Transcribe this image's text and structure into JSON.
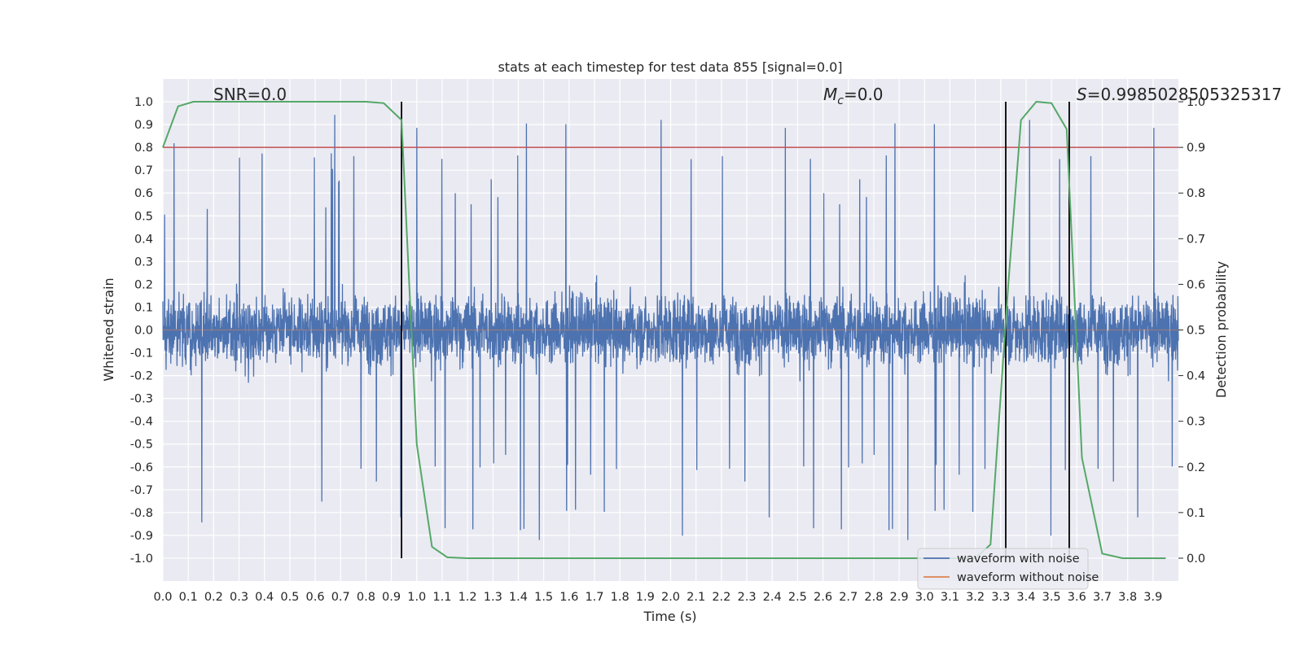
{
  "chart_data": {
    "type": "line",
    "title": "stats at each timestep for test data 855 [signal=0.0]",
    "xlabel": "Time (s)",
    "ylabel": "Whitened strain",
    "y2label": "Detection probability",
    "xlim": [
      0.0,
      4.0
    ],
    "ylim": [
      -1.1,
      1.1
    ],
    "y2lim": [
      -0.05,
      1.0
    ],
    "grid": true,
    "x_ticks": [
      "0.0",
      "0.1",
      "0.2",
      "0.3",
      "0.4",
      "0.5",
      "0.6",
      "0.7",
      "0.8",
      "0.9",
      "1.0",
      "1.1",
      "1.2",
      "1.3",
      "1.4",
      "1.5",
      "1.6",
      "1.7",
      "1.8",
      "1.9",
      "2.0",
      "2.1",
      "2.2",
      "2.3",
      "2.4",
      "2.5",
      "2.6",
      "2.7",
      "2.8",
      "2.9",
      "3.0",
      "3.1",
      "3.2",
      "3.3",
      "3.4",
      "3.5",
      "3.6",
      "3.7",
      "3.8",
      "3.9"
    ],
    "y_ticks": [
      "1.0",
      "0.9",
      "0.8",
      "0.7",
      "0.6",
      "0.5",
      "0.4",
      "0.3",
      "0.2",
      "0.1",
      "0.0",
      "-0.1",
      "-0.2",
      "-0.3",
      "-0.4",
      "-0.5",
      "-0.6",
      "-0.7",
      "-0.8",
      "-0.9",
      "-1.0"
    ],
    "y2_ticks": [
      "1.0",
      "0.9",
      "0.8",
      "0.7",
      "0.6",
      "0.5",
      "0.4",
      "0.3",
      "0.2",
      "0.1",
      "0.0"
    ],
    "annotations": {
      "snr": "SNR=0.0",
      "mc_symbol": "M",
      "mc_sub": "c",
      "mc_value": "=0.0",
      "s_symbol": "S",
      "s_value": "=0.9985028505325317"
    },
    "series": [
      {
        "name": "waveform with noise",
        "color": "#4c72b0",
        "style": "noise",
        "amplitude_range": [
          -1.0,
          1.0
        ]
      },
      {
        "name": "waveform without noise",
        "color": "#dd8452",
        "values": [
          0.0,
          0.0
        ]
      }
    ],
    "detection_probability": {
      "color": "#55a868",
      "x": [
        0.0,
        0.06,
        0.12,
        0.2,
        0.3,
        0.4,
        0.5,
        0.6,
        0.7,
        0.8,
        0.87,
        0.94,
        1.0,
        1.06,
        1.12,
        1.2,
        1.4,
        1.6,
        1.8,
        2.0,
        2.2,
        2.4,
        2.6,
        2.8,
        3.0,
        3.2,
        3.26,
        3.33,
        3.38,
        3.44,
        3.5,
        3.56,
        3.62,
        3.7,
        3.78,
        3.9,
        3.95
      ],
      "y": [
        0.9,
        0.99,
        1.0,
        1.0,
        1.0,
        1.0,
        1.0,
        1.0,
        1.0,
        1.0,
        0.997,
        0.96,
        0.25,
        0.025,
        0.002,
        0.0,
        0.0,
        0.0,
        0.0,
        0.0,
        0.0,
        0.0,
        0.0,
        0.0,
        0.0,
        0.0,
        0.03,
        0.6,
        0.96,
        1.0,
        0.997,
        0.94,
        0.22,
        0.01,
        0.0,
        0.0,
        0.0
      ]
    },
    "threshold": {
      "axis": "y2",
      "value": 0.9,
      "color": "#c44e52"
    },
    "vertical_markers": {
      "x": [
        0.94,
        3.32,
        3.57
      ],
      "color": "#000000"
    },
    "legend": {
      "placement": "lower-right"
    }
  }
}
